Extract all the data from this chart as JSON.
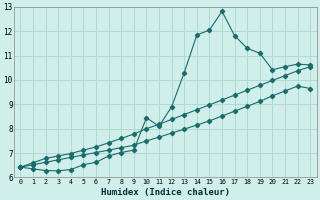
{
  "xlabel": "Humidex (Indice chaleur)",
  "bg_color": "#d0eeea",
  "grid_color": "#b0d8d4",
  "line_color": "#1a6b6b",
  "xlim": [
    -0.5,
    23.5
  ],
  "ylim": [
    6,
    13
  ],
  "xticks": [
    0,
    1,
    2,
    3,
    4,
    5,
    6,
    7,
    8,
    9,
    10,
    11,
    12,
    13,
    14,
    15,
    16,
    17,
    18,
    19,
    20,
    21,
    22,
    23
  ],
  "yticks": [
    6,
    7,
    8,
    9,
    10,
    11,
    12,
    13
  ],
  "line1_x": [
    0,
    1,
    2,
    3,
    4,
    5,
    6,
    7,
    8,
    9,
    10,
    11,
    12,
    13,
    14,
    15,
    16,
    17,
    18,
    19,
    20,
    21,
    22,
    23
  ],
  "line1_y": [
    6.42,
    6.35,
    6.28,
    6.27,
    6.32,
    6.52,
    6.62,
    6.88,
    7.02,
    7.12,
    8.45,
    8.1,
    8.9,
    10.3,
    11.85,
    12.05,
    12.82,
    11.82,
    11.3,
    11.1,
    10.42,
    10.55,
    10.65,
    10.62
  ],
  "line2_x": [
    0,
    1,
    2,
    3,
    4,
    5,
    6,
    7,
    8,
    9,
    10,
    11,
    12,
    13,
    14,
    15,
    16,
    17,
    18,
    19,
    20,
    21,
    22,
    23
  ],
  "line2_y": [
    6.42,
    6.6,
    6.78,
    6.88,
    6.98,
    7.12,
    7.25,
    7.42,
    7.6,
    7.78,
    8.0,
    8.18,
    8.38,
    8.58,
    8.78,
    8.98,
    9.18,
    9.38,
    9.58,
    9.78,
    9.98,
    10.18,
    10.38,
    10.55
  ],
  "line3_x": [
    0,
    1,
    2,
    3,
    4,
    5,
    6,
    7,
    8,
    9,
    10,
    11,
    12,
    13,
    14,
    15,
    16,
    17,
    18,
    19,
    20,
    21,
    22,
    23
  ],
  "line3_y": [
    6.42,
    6.52,
    6.62,
    6.72,
    6.82,
    6.92,
    7.02,
    7.12,
    7.22,
    7.32,
    7.5,
    7.65,
    7.82,
    7.98,
    8.15,
    8.32,
    8.52,
    8.72,
    8.92,
    9.12,
    9.35,
    9.55,
    9.75,
    9.65
  ]
}
